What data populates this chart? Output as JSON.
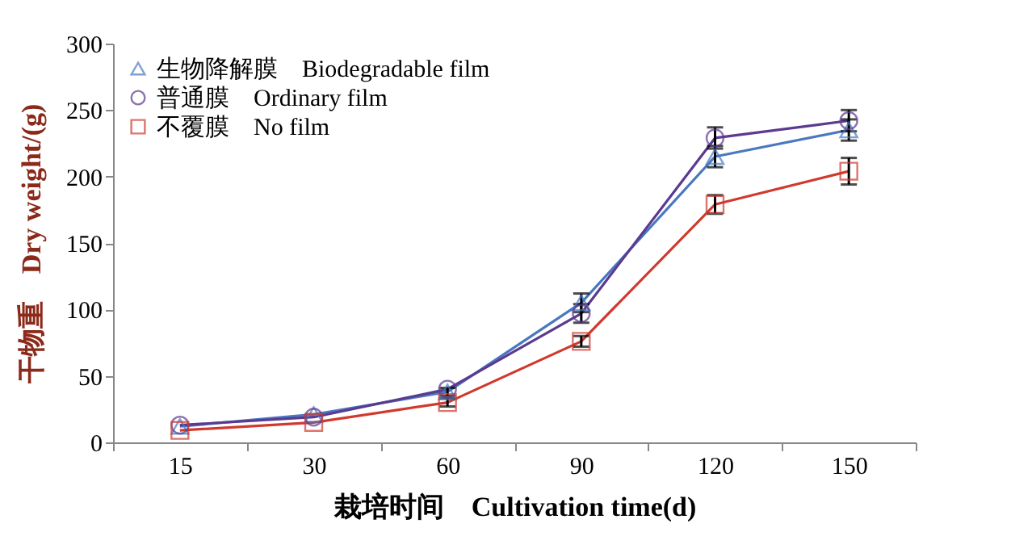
{
  "chart_data": {
    "type": "line",
    "xlabel": "栽培时间　Cultivation time(d)",
    "ylabel": "干物重　Dry weight/(g)",
    "categories": [
      "15",
      "30",
      "60",
      "90",
      "120",
      "150"
    ],
    "ylim": [
      0,
      300
    ],
    "yticks": [
      0,
      50,
      100,
      150,
      200,
      250,
      300
    ],
    "grid": false,
    "legend": "top left",
    "line_style": "solid",
    "series": [
      {
        "name": "生物降解膜　Biodegradable film",
        "color": "#4a78c0",
        "marker": "triangle",
        "values": [
          12,
          21,
          38,
          105,
          215,
          235
        ],
        "errors": [
          null,
          null,
          3,
          7,
          8,
          8
        ]
      },
      {
        "name": "普通膜　Ordinary film",
        "color": "#5b3a8f",
        "marker": "circle",
        "values": [
          13,
          19,
          40,
          97,
          229,
          242
        ],
        "errors": [
          null,
          null,
          null,
          7,
          8,
          8
        ]
      },
      {
        "name": "不覆膜　No film",
        "color": "#d03a2e",
        "marker": "square",
        "values": [
          9,
          15,
          30,
          76,
          179,
          204
        ],
        "errors": [
          null,
          null,
          3,
          4,
          7,
          10
        ]
      }
    ]
  }
}
